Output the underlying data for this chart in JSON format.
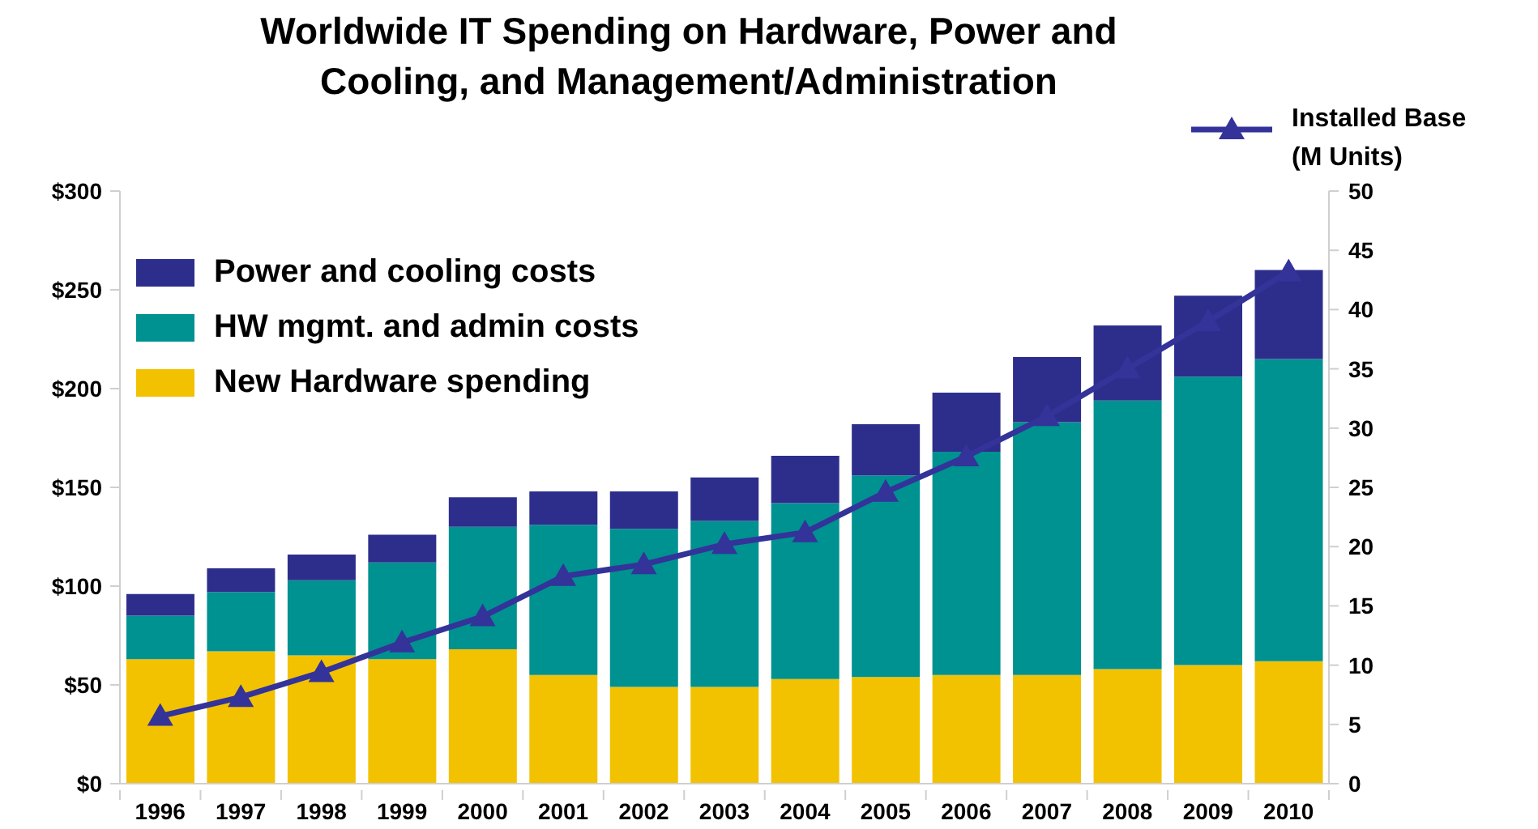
{
  "chart_data": {
    "type": "bar",
    "title": "Worldwide IT Spending on Hardware, Power and Cooling, and Management/Administration",
    "categories": [
      "1996",
      "1997",
      "1998",
      "1999",
      "2000",
      "2001",
      "2002",
      "2003",
      "2004",
      "2005",
      "2006",
      "2007",
      "2008",
      "2009",
      "2010"
    ],
    "stacked": true,
    "series": [
      {
        "name": "New Hardware spending",
        "color": "#f2c200",
        "values": [
          63,
          67,
          65,
          63,
          68,
          55,
          49,
          49,
          53,
          54,
          55,
          55,
          58,
          60,
          62
        ]
      },
      {
        "name": "HW mgmt. and admin costs",
        "color": "#009191",
        "values": [
          22,
          30,
          38,
          49,
          62,
          76,
          80,
          84,
          89,
          102,
          113,
          128,
          136,
          146,
          153
        ]
      },
      {
        "name": "Power and cooling costs",
        "color": "#2d2e8c",
        "values": [
          11,
          12,
          13,
          14,
          15,
          17,
          19,
          22,
          24,
          26,
          30,
          33,
          38,
          41,
          45
        ]
      },
      {
        "name": "Installed Base (M Units)",
        "type": "line",
        "axis": "y2",
        "color": "#33339a",
        "values": [
          5.7,
          7.3,
          9.4,
          11.9,
          14.1,
          17.5,
          18.5,
          20.2,
          21.2,
          24.6,
          27.6,
          31.0,
          35.0,
          39.0,
          43.2
        ]
      }
    ],
    "ylim": [
      0,
      300
    ],
    "yticks": [
      {
        "value": 0,
        "label": "$0"
      },
      {
        "value": 50,
        "label": "$50"
      },
      {
        "value": 100,
        "label": "$100"
      },
      {
        "value": 150,
        "label": "$150"
      },
      {
        "value": 200,
        "label": "$200"
      },
      {
        "value": 250,
        "label": "$250"
      },
      {
        "value": 300,
        "label": "$300"
      }
    ],
    "y2lim": [
      0,
      50
    ],
    "y2ticks": [
      0,
      5,
      10,
      15,
      20,
      25,
      30,
      35,
      40,
      45,
      50
    ],
    "legend": "top",
    "marker": "triangle"
  }
}
